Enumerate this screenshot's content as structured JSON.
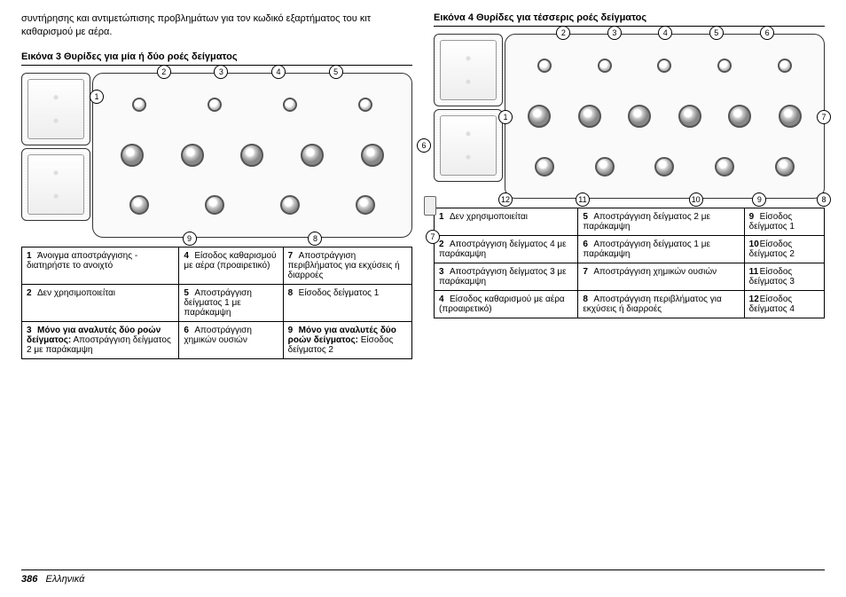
{
  "intro": "συντήρησης και αντιμετώπισης προβλημάτων για τον κωδικό εξαρτήματος του κιτ καθαρισμού με αέρα.",
  "figure3": {
    "title": "Εικόνα 3  Θυρίδες για μία ή δύο ροές δείγματος",
    "callouts": [
      "1",
      "2",
      "3",
      "4",
      "5",
      "6",
      "7",
      "8",
      "9"
    ],
    "legend": [
      {
        "n": "1",
        "t": "Άνοιγμα αποστράγγισης - διατηρήστε το ανοιχτό"
      },
      {
        "n": "2",
        "t": "Δεν χρησιμοποιείται"
      },
      {
        "n": "3",
        "t": "<b>Μόνο για αναλυτές δύο ροών δείγματος:</b> Αποστράγγιση δείγματος 2 με παράκαμψη"
      },
      {
        "n": "4",
        "t": "Είσοδος καθαρισμού με αέρα (προαιρετικό)"
      },
      {
        "n": "5",
        "t": "Αποστράγγιση δείγματος 1 με παράκαμψη"
      },
      {
        "n": "6",
        "t": "Αποστράγγιση χημικών ουσιών"
      },
      {
        "n": "7",
        "t": "Αποστράγγιση περιβλήματος για εκχύσεις ή διαρροές"
      },
      {
        "n": "8",
        "t": "Είσοδος δείγματος 1"
      },
      {
        "n": "9",
        "t": "<b>Μόνο για αναλυτές δύο ροών δείγματος:</b> Είσοδος δείγματος 2"
      }
    ]
  },
  "figure4": {
    "title": "Εικόνα 4  Θυρίδες για τέσσερις ροές δείγματος",
    "callouts": [
      "1",
      "2",
      "3",
      "4",
      "5",
      "6",
      "7",
      "8",
      "9",
      "10",
      "11",
      "12"
    ],
    "legend": [
      {
        "n": "1",
        "t": "Δεν χρησιμοποιείται"
      },
      {
        "n": "2",
        "t": "Αποστράγγιση δείγματος 4 με παράκαμψη"
      },
      {
        "n": "3",
        "t": "Αποστράγγιση δείγματος 3 με παράκαμψη"
      },
      {
        "n": "4",
        "t": "Είσοδος καθαρισμού με αέρα (προαιρετικό)"
      },
      {
        "n": "5",
        "t": "Αποστράγγιση δείγματος 2 με παράκαμψη"
      },
      {
        "n": "6",
        "t": "Αποστράγγιση δείγματος 1 με παράκαμψη"
      },
      {
        "n": "7",
        "t": "Αποστράγγιση χημικών ουσιών"
      },
      {
        "n": "8",
        "t": "Αποστράγγιση περιβλήματος για εκχύσεις ή διαρροές"
      },
      {
        "n": "9",
        "t": "Είσοδος δείγματος 1"
      },
      {
        "n": "10",
        "t": "Είσοδος δείγματος 2"
      },
      {
        "n": "11",
        "t": "Είσοδος δείγματος 3"
      },
      {
        "n": "12",
        "t": "Είσοδος δείγματος 4"
      }
    ]
  },
  "footer": {
    "page": "386",
    "lang": "Ελληνικά"
  }
}
